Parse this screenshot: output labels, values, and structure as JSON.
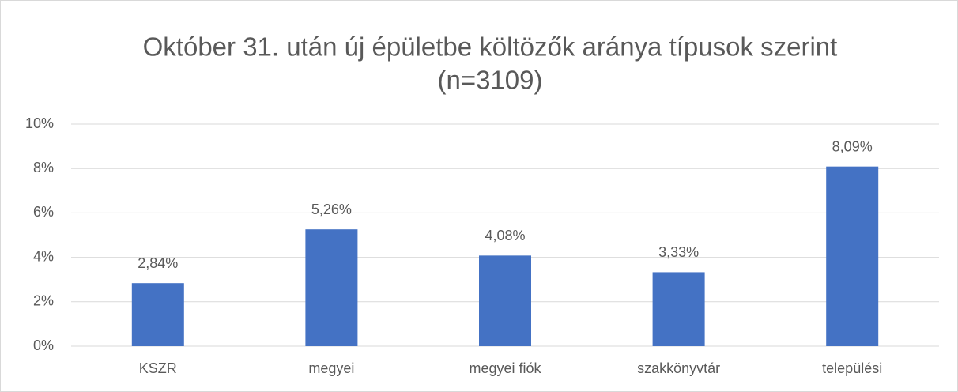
{
  "chart_data": {
    "type": "bar",
    "title": "Október 31. után új épületbe költözők aránya típusok szerint",
    "subtitle": "(n=3109)",
    "categories": [
      "KSZR",
      "megyei",
      "megyei fiók",
      "szakkönyvtár",
      "települési"
    ],
    "values": [
      2.84,
      5.26,
      4.08,
      3.33,
      8.09
    ],
    "value_labels": [
      "2,84%",
      "5,26%",
      "4,08%",
      "3,33%",
      "8,09%"
    ],
    "color": "#4472c4",
    "ylim": [
      0,
      10
    ],
    "yticks": [
      {
        "value": 0,
        "label": "0%"
      },
      {
        "value": 2,
        "label": "2%"
      },
      {
        "value": 4,
        "label": "4%"
      },
      {
        "value": 6,
        "label": "6%"
      },
      {
        "value": 8,
        "label": "8%"
      },
      {
        "value": 10,
        "label": "10%"
      }
    ],
    "grid": true
  }
}
